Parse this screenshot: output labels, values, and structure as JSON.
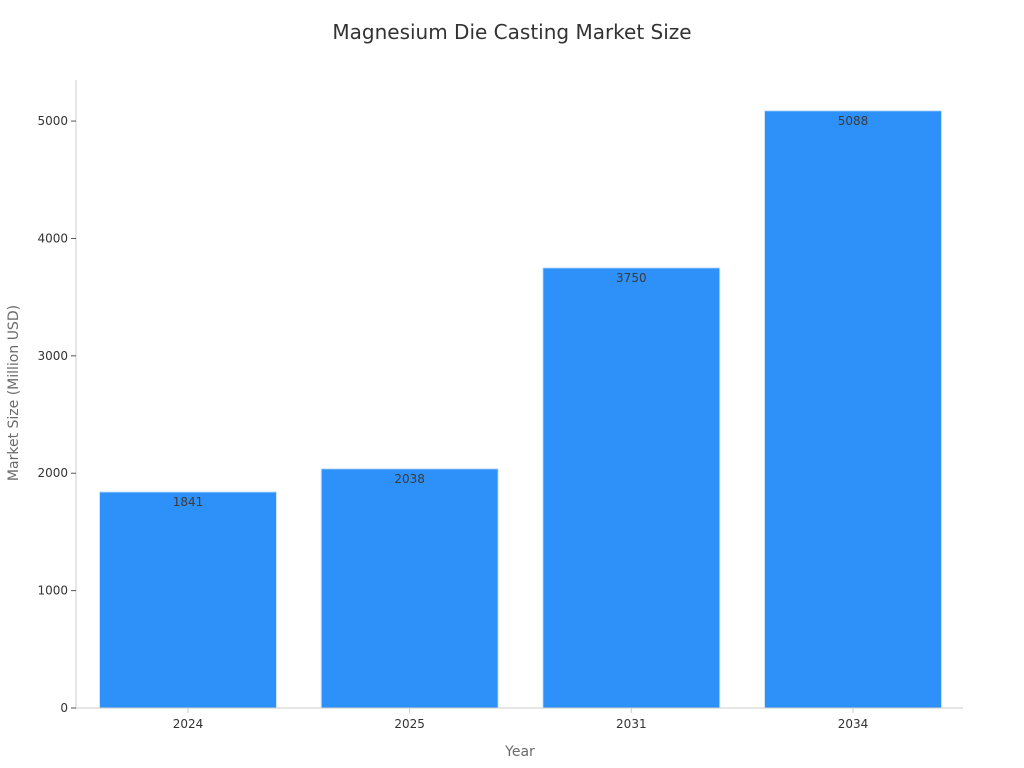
{
  "chart_data": {
    "type": "bar",
    "title": "Magnesium Die Casting Market Size",
    "xlabel": "Year",
    "ylabel": "Market Size (Million USD)",
    "categories": [
      "2024",
      "2025",
      "2031",
      "2034"
    ],
    "values": [
      1841,
      2038,
      3750,
      5088
    ],
    "data_labels": [
      "1841",
      "2038",
      "3750",
      "5088"
    ],
    "ylim": [
      0,
      5350
    ],
    "yticks": [
      0,
      1000,
      2000,
      3000,
      4000,
      5000
    ],
    "ytick_labels": [
      "0",
      "1000",
      "2000",
      "3000",
      "4000",
      "5000"
    ],
    "grid": false,
    "bar_color": "#2e91f9",
    "bar_edge_color": "#cfe3fb",
    "axis_color": "#cccccc"
  }
}
